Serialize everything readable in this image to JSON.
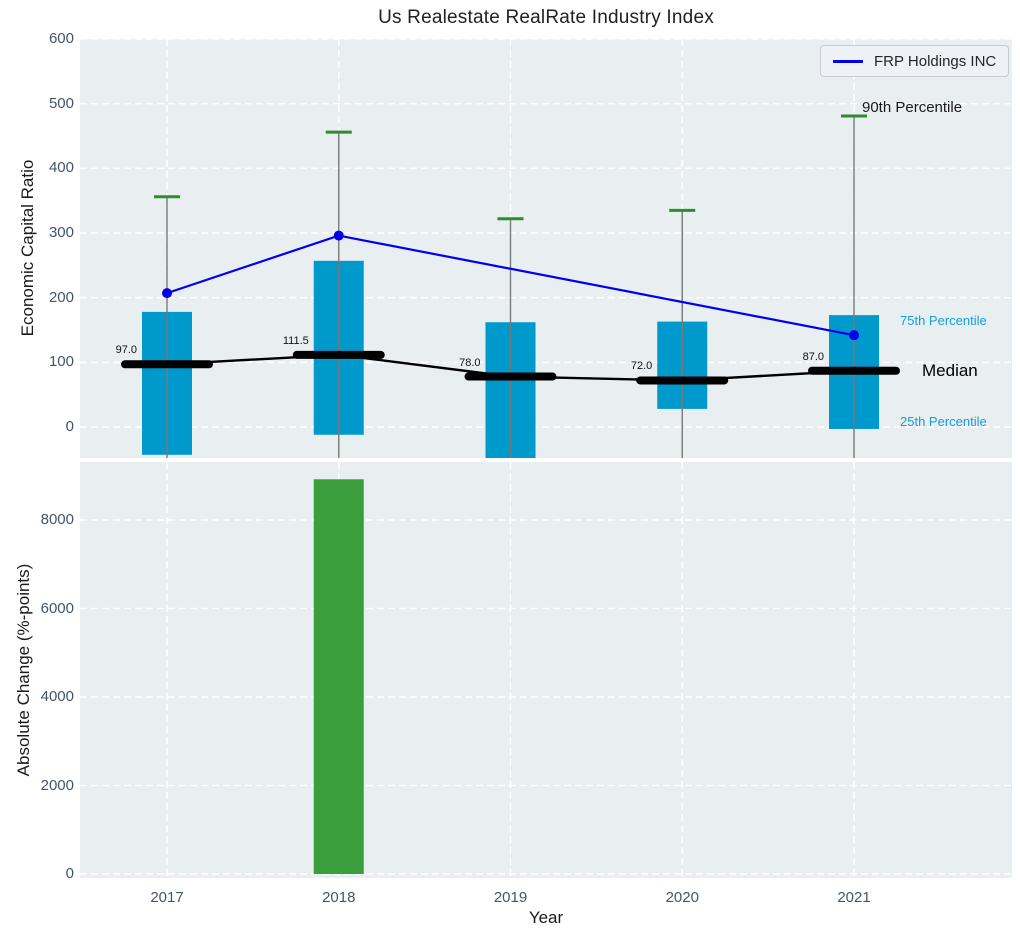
{
  "figure": {
    "title": "Us Realestate RealRate Industry Index",
    "xlabel": "Year"
  },
  "legend": {
    "label": "FRP Holdings INC"
  },
  "annotations": {
    "p90_label": "90th Percentile",
    "p75_label": "75th Percentile",
    "median_label": "Median",
    "p25_label": "25th Percentile"
  },
  "colors": {
    "axes_bg": "#e9eef0",
    "grid": "#ffffff",
    "percentile_bar": "#0099cc",
    "change_bar": "#3a9e3d",
    "frp_line": "#0000ee",
    "median": "#000000",
    "whisker": "#787878",
    "cap": "#2e8b2e",
    "tick_label": "#44546a",
    "cyan_label": "#15a0d8"
  },
  "chart_data": [
    {
      "type": "box-percentile+line",
      "title": "Us Realestate RealRate Industry Index",
      "xlabel": "Year",
      "ylabel": "Economic Capital Ratio",
      "categories": [
        "2017",
        "2018",
        "2019",
        "2020",
        "2021"
      ],
      "yticks": [
        0,
        100,
        200,
        300,
        400,
        500,
        600
      ],
      "ylim": [
        -48,
        600
      ],
      "grid": true,
      "legend_position": "upper right",
      "series": [
        {
          "name": "90th Percentile",
          "role": "whisker_cap",
          "values": [
            356,
            456,
            322,
            335,
            481
          ]
        },
        {
          "name": "75th Percentile",
          "role": "bar_top",
          "values": [
            178,
            257,
            162,
            163,
            173
          ]
        },
        {
          "name": "25th Percentile",
          "role": "bar_bottom",
          "values": [
            -43,
            -12,
            -48,
            28,
            -3
          ]
        },
        {
          "name": "Median",
          "role": "median",
          "values": [
            97.0,
            111.5,
            78.0,
            72.0,
            87.0
          ],
          "labels": [
            "97.0",
            "111.5",
            "78.0",
            "72.0",
            "87.0"
          ]
        },
        {
          "name": "FRP Holdings INC",
          "role": "line",
          "values": [
            207,
            296,
            null,
            null,
            142
          ]
        }
      ]
    },
    {
      "type": "bar",
      "xlabel": "Year",
      "ylabel": "Absolute Change (%-points)",
      "categories": [
        "2017",
        "2018",
        "2019",
        "2020",
        "2021"
      ],
      "values": [
        null,
        8920,
        null,
        null,
        null
      ],
      "yticks": [
        0,
        2000,
        4000,
        6000,
        8000
      ],
      "ylim": [
        0,
        9310
      ],
      "grid": true
    }
  ]
}
